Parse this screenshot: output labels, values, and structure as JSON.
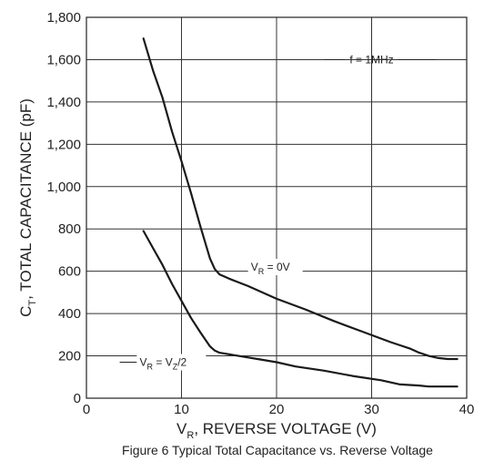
{
  "chart_data": {
    "type": "line",
    "caption": "Figure 6  Typical Total Capacitance vs. Reverse Voltage",
    "xlabel": {
      "main": "V",
      "sub": "R",
      "rest": ", REVERSE VOLTAGE (V)"
    },
    "ylabel": {
      "main": "C",
      "sub": "T",
      "rest": ", TOTAL CAPACITANCE (pF)"
    },
    "xlim": [
      0,
      40
    ],
    "ylim": [
      0,
      1800
    ],
    "xticks": [
      0,
      10,
      20,
      30,
      40
    ],
    "xtick_labels": [
      "0",
      "10",
      "20",
      "30",
      "40"
    ],
    "yticks": [
      0,
      200,
      400,
      600,
      800,
      1000,
      1200,
      1400,
      1600,
      1800
    ],
    "ytick_labels": [
      "0",
      "200",
      "400",
      "600",
      "800",
      "1,000",
      "1,200",
      "1,400",
      "1,600",
      "1,800"
    ],
    "grid": true,
    "frequency_note": "f = 1MHz",
    "series": [
      {
        "label": {
          "main": "V",
          "sub": "R",
          "rest": " = 0V"
        },
        "x": [
          6,
          7,
          8,
          9,
          10,
          11,
          12,
          13,
          13.5,
          14,
          15,
          17,
          20,
          23,
          26,
          29,
          32,
          34,
          35,
          36,
          37,
          38,
          39
        ],
        "y": [
          1700,
          1550,
          1420,
          1260,
          1120,
          970,
          810,
          660,
          610,
          585,
          565,
          530,
          470,
          420,
          365,
          315,
          265,
          235,
          215,
          200,
          190,
          185,
          185
        ]
      },
      {
        "label": {
          "main": "V",
          "sub": "R",
          "rest": " = V",
          "sub2": "Z",
          "rest2": "/2"
        },
        "x": [
          6,
          7,
          8,
          9,
          10,
          11,
          12,
          13,
          13.5,
          14,
          16,
          18,
          20,
          22,
          25,
          28,
          31,
          33,
          35,
          36,
          37,
          39
        ],
        "y": [
          790,
          710,
          630,
          540,
          460,
          380,
          310,
          245,
          225,
          215,
          200,
          185,
          170,
          150,
          130,
          105,
          85,
          65,
          60,
          55,
          55,
          55
        ]
      }
    ]
  }
}
